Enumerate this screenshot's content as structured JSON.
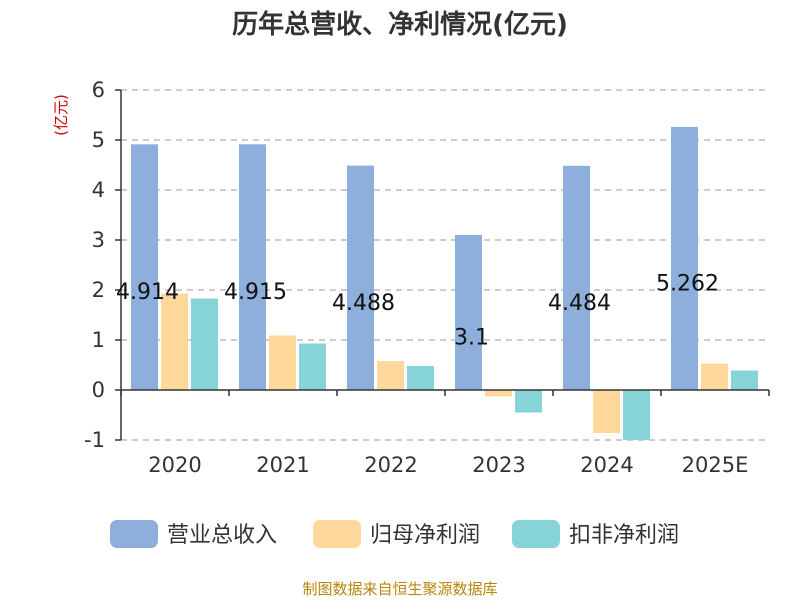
{
  "chart_data": {
    "type": "bar",
    "title": "历年总营收、净利情况(亿元)",
    "ylabel": "(亿元)",
    "categories": [
      "2020",
      "2021",
      "2022",
      "2023",
      "2024",
      "2025E"
    ],
    "ylim": [
      -1,
      6
    ],
    "yticks": [
      "-1",
      "0",
      "1",
      "2",
      "3",
      "4",
      "5",
      "6"
    ],
    "grid": true,
    "legend_position": "bottom",
    "series": [
      {
        "name": "营业总收入",
        "color": "#8eaedb",
        "values": [
          4.914,
          4.915,
          4.488,
          3.1,
          4.484,
          5.262
        ]
      },
      {
        "name": "归母净利润",
        "color": "#fed89a",
        "values": [
          1.93,
          1.09,
          0.58,
          -0.13,
          -0.86,
          0.53
        ]
      },
      {
        "name": "扣非净利润",
        "color": "#86d4d8",
        "values": [
          1.83,
          0.93,
          0.48,
          -0.45,
          -1.0,
          0.39
        ]
      }
    ],
    "data_labels": [
      "4.914",
      "4.915",
      "4.488",
      "3.1",
      "4.484",
      "5.262"
    ]
  },
  "source": "制图数据来自恒生聚源数据库",
  "colors": {
    "unit": "#cc0000",
    "source": "#b8860b",
    "axis": "#333333",
    "grid": "#bbbbbb"
  }
}
